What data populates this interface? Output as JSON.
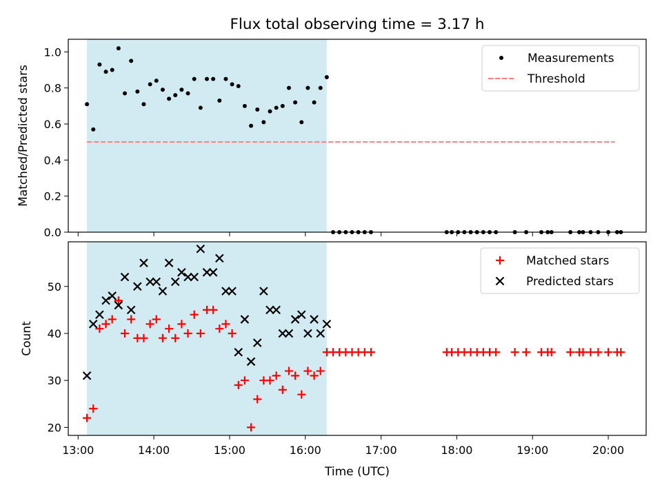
{
  "title": "Flux total observing time = 3.17 h",
  "colors": {
    "shade": "#add8e6",
    "measurement": "#000000",
    "threshold": "#ff7f7f",
    "matched": "#ff0000",
    "predicted": "#000000"
  },
  "chart_data": [
    {
      "type": "scatter",
      "panel": "top",
      "ylabel": "Matched/Predicted stars",
      "xlim": [
        12.87,
        20.5
      ],
      "ylim": [
        0,
        1.07
      ],
      "yticks": [
        0.0,
        0.2,
        0.4,
        0.6,
        0.8,
        1.0
      ],
      "ytick_labels": [
        "0.0",
        "0.2",
        "0.4",
        "0.6",
        "0.8",
        "1.0"
      ],
      "shaded_span": [
        "13:07",
        "16:17"
      ],
      "legend_position": "upper right",
      "series": [
        {
          "name": "Measurements",
          "style": "dot",
          "x": [
            "13:07",
            "13:12",
            "13:17",
            "13:22",
            "13:27",
            "13:32",
            "13:37",
            "13:42",
            "13:47",
            "13:52",
            "13:57",
            "14:02",
            "14:07",
            "14:12",
            "14:17",
            "14:22",
            "14:27",
            "14:32",
            "14:37",
            "14:42",
            "14:47",
            "14:52",
            "14:57",
            "15:02",
            "15:07",
            "15:12",
            "15:17",
            "15:22",
            "15:27",
            "15:32",
            "15:37",
            "15:42",
            "15:47",
            "15:52",
            "15:57",
            "16:02",
            "16:07",
            "16:12",
            "16:17",
            "16:22",
            "16:27",
            "16:32",
            "16:37",
            "16:42",
            "16:47",
            "16:52",
            "17:52",
            "17:56",
            "18:01",
            "18:06",
            "18:11",
            "18:16",
            "18:21",
            "18:26",
            "18:31",
            "18:46",
            "18:55",
            "19:07",
            "19:12",
            "19:15",
            "19:30",
            "19:37",
            "19:40",
            "19:46",
            "19:52",
            "20:00",
            "20:07",
            "20:10"
          ],
          "y": [
            0.71,
            0.57,
            0.93,
            0.89,
            0.9,
            1.02,
            0.77,
            0.95,
            0.78,
            0.71,
            0.82,
            0.84,
            0.79,
            0.74,
            0.76,
            0.79,
            0.77,
            0.85,
            0.69,
            0.85,
            0.85,
            0.73,
            0.85,
            0.82,
            0.81,
            0.7,
            0.59,
            0.68,
            0.61,
            0.67,
            0.69,
            0.7,
            0.8,
            0.72,
            0.61,
            0.8,
            0.72,
            0.8,
            0.86,
            0,
            0,
            0,
            0,
            0,
            0,
            0,
            0,
            0,
            0,
            0,
            0,
            0,
            0,
            0,
            0,
            0,
            0,
            0,
            0,
            0,
            0,
            0,
            0,
            0,
            0,
            0,
            0,
            0
          ]
        },
        {
          "name": "Threshold",
          "style": "dashed",
          "x": [
            "13:07",
            "20:05"
          ],
          "y": [
            0.5,
            0.5
          ]
        }
      ]
    },
    {
      "type": "scatter",
      "panel": "bottom",
      "xlabel": "Time (UTC)",
      "ylabel": "Count",
      "xlim": [
        12.87,
        20.5
      ],
      "ylim": [
        18.3,
        59.5
      ],
      "xticks": [
        "13:00",
        "14:00",
        "15:00",
        "16:00",
        "17:00",
        "18:00",
        "19:00",
        "20:00"
      ],
      "yticks": [
        20,
        30,
        40,
        50
      ],
      "ytick_labels": [
        "20",
        "30",
        "40",
        "50"
      ],
      "shaded_span": [
        "13:07",
        "16:17"
      ],
      "legend_position": "upper right",
      "series": [
        {
          "name": "Matched stars",
          "marker": "plus",
          "x": [
            "13:07",
            "13:12",
            "13:17",
            "13:22",
            "13:27",
            "13:32",
            "13:37",
            "13:42",
            "13:47",
            "13:52",
            "13:57",
            "14:02",
            "14:07",
            "14:12",
            "14:17",
            "14:22",
            "14:27",
            "14:32",
            "14:37",
            "14:42",
            "14:47",
            "14:52",
            "14:57",
            "15:02",
            "15:07",
            "15:12",
            "15:17",
            "15:22",
            "15:27",
            "15:32",
            "15:37",
            "15:42",
            "15:47",
            "15:52",
            "15:57",
            "16:02",
            "16:07",
            "16:12",
            "16:17",
            "16:22",
            "16:27",
            "16:32",
            "16:37",
            "16:42",
            "16:47",
            "16:52",
            "17:52",
            "17:56",
            "18:01",
            "18:06",
            "18:11",
            "18:16",
            "18:21",
            "18:26",
            "18:31",
            "18:46",
            "18:55",
            "19:07",
            "19:12",
            "19:15",
            "19:30",
            "19:37",
            "19:40",
            "19:46",
            "19:52",
            "20:00",
            "20:07",
            "20:10"
          ],
          "y": [
            22,
            24,
            41,
            42,
            43,
            47,
            40,
            43,
            39,
            39,
            42,
            43,
            39,
            41,
            39,
            42,
            40,
            44,
            40,
            45,
            45,
            41,
            42,
            40,
            29,
            30,
            20,
            26,
            30,
            30,
            31,
            28,
            32,
            31,
            27,
            32,
            31,
            32,
            36,
            36,
            36,
            36,
            36,
            36,
            36,
            36,
            36,
            36,
            36,
            36,
            36,
            36,
            36,
            36,
            36,
            36,
            36,
            36,
            36,
            36,
            36,
            36,
            36,
            36,
            36,
            36,
            36,
            36
          ]
        },
        {
          "name": "Predicted stars",
          "marker": "x",
          "x": [
            "13:07",
            "13:12",
            "13:17",
            "13:22",
            "13:27",
            "13:32",
            "13:37",
            "13:42",
            "13:47",
            "13:52",
            "13:57",
            "14:02",
            "14:07",
            "14:12",
            "14:17",
            "14:22",
            "14:27",
            "14:32",
            "14:37",
            "14:42",
            "14:47",
            "14:52",
            "14:57",
            "15:02",
            "15:07",
            "15:12",
            "15:17",
            "15:22",
            "15:27",
            "15:32",
            "15:37",
            "15:42",
            "15:47",
            "15:52",
            "15:57",
            "16:02",
            "16:07",
            "16:12",
            "16:17"
          ],
          "y": [
            31,
            42,
            44,
            47,
            48,
            46,
            52,
            45,
            50,
            55,
            51,
            51,
            49,
            55,
            51,
            53,
            52,
            52,
            58,
            53,
            53,
            56,
            49,
            49,
            36,
            43,
            34,
            38,
            49,
            45,
            45,
            40,
            40,
            43,
            44,
            40,
            43,
            40,
            42
          ]
        }
      ]
    }
  ]
}
